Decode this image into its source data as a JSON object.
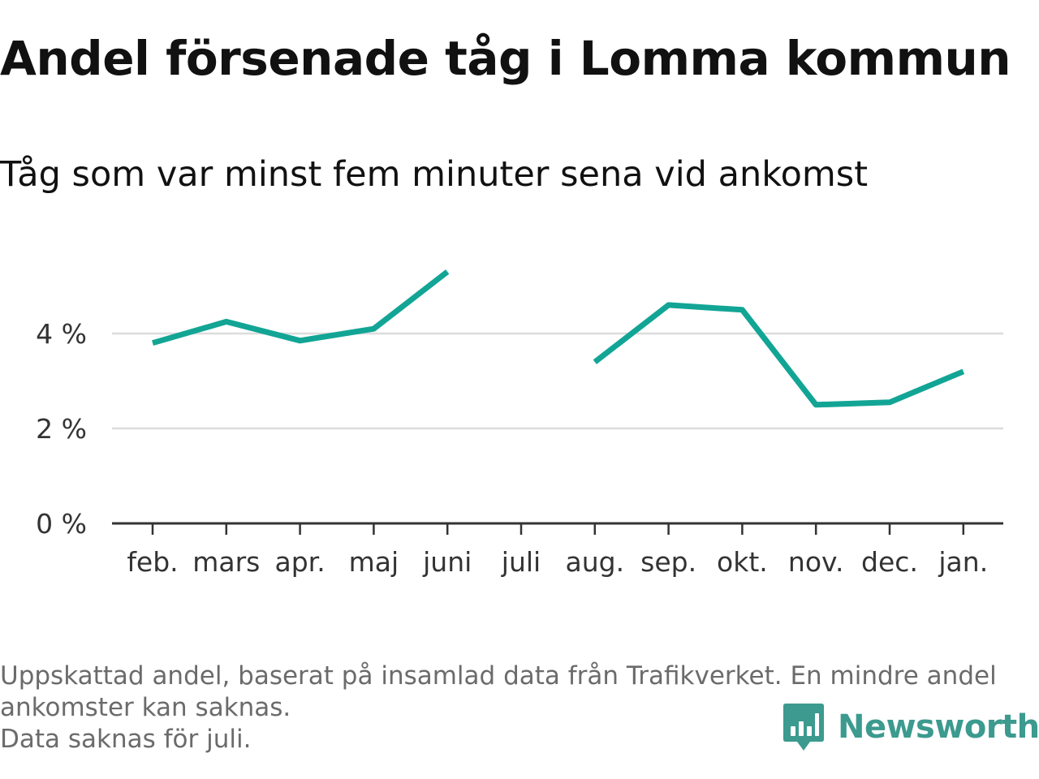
{
  "header": {
    "title": "Andel försenade tåg i Lomma kommun",
    "subtitle": "Tåg som var minst fem minuter sena vid ankomst"
  },
  "footnote": {
    "line1": "Uppskattad andel, baserat på insamlad data från Trafikverket. En mindre andel",
    "line2": "ankomster kan saknas.",
    "line3": "Data saknas för juli."
  },
  "brand": {
    "name": "Newsworthy",
    "color": "#3c9a8f"
  },
  "chart_data": {
    "type": "line",
    "title": "Andel försenade tåg i Lomma kommun",
    "subtitle": "Tåg som var minst fem minuter sena vid ankomst",
    "categories": [
      "feb.",
      "mars",
      "apr.",
      "maj",
      "juni",
      "juli",
      "aug.",
      "sep.",
      "okt.",
      "nov.",
      "dec.",
      "jan."
    ],
    "values": [
      3.8,
      4.25,
      3.85,
      4.1,
      5.3,
      null,
      3.4,
      4.6,
      4.5,
      2.5,
      2.55,
      3.2
    ],
    "ylim": [
      0,
      6
    ],
    "yticks": [
      0,
      2,
      4
    ],
    "ytick_labels": [
      "0 %",
      "2 %",
      "4 %"
    ],
    "grid": true,
    "color": "#12a595"
  }
}
